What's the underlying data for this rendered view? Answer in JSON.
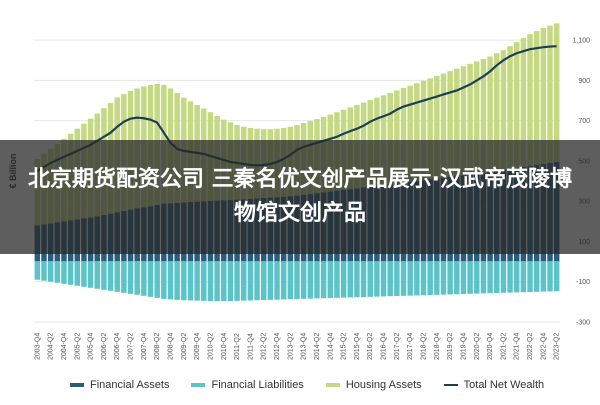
{
  "chart_data": {
    "type": "area",
    "title": "",
    "ylabel": "€ Billion",
    "ylim": [
      -300,
      1200
    ],
    "yticks": [
      1100,
      900,
      700,
      500,
      300,
      100,
      -100,
      -300
    ],
    "grid": true,
    "legend_position": "bottom",
    "quarters": [
      "2003-Q4",
      "2004-Q1",
      "2004-Q2",
      "2004-Q3",
      "2004-Q4",
      "2005-Q1",
      "2005-Q2",
      "2005-Q3",
      "2005-Q4",
      "2006-Q1",
      "2006-Q2",
      "2006-Q3",
      "2006-Q4",
      "2007-Q1",
      "2007-Q2",
      "2007-Q3",
      "2007-Q4",
      "2008-Q1",
      "2008-Q2",
      "2008-Q3",
      "2008-Q4",
      "2009-Q1",
      "2009-Q2",
      "2009-Q3",
      "2009-Q4",
      "2010-Q1",
      "2010-Q2",
      "2010-Q3",
      "2010-Q4",
      "2011-Q1",
      "2011-Q2",
      "2011-Q3",
      "2011-Q4",
      "2012-Q1",
      "2012-Q2",
      "2012-Q3",
      "2012-Q4",
      "2013-Q1",
      "2013-Q2",
      "2013-Q3",
      "2013-Q4",
      "2014-Q1",
      "2014-Q2",
      "2014-Q3",
      "2014-Q4",
      "2015-Q1",
      "2015-Q2",
      "2015-Q3",
      "2015-Q4",
      "2016-Q1",
      "2016-Q2",
      "2016-Q3",
      "2016-Q4",
      "2017-Q1",
      "2017-Q2",
      "2017-Q3",
      "2017-Q4",
      "2018-Q1",
      "2018-Q2",
      "2018-Q3",
      "2018-Q4",
      "2019-Q1",
      "2019-Q2",
      "2019-Q3",
      "2019-Q4",
      "2020-Q1",
      "2020-Q2",
      "2020-Q3",
      "2020-Q4",
      "2021-Q1",
      "2021-Q2",
      "2021-Q3",
      "2021-Q4",
      "2022-Q1",
      "2022-Q2",
      "2022-Q3",
      "2022-Q4",
      "2023-Q1",
      "2023-Q2"
    ],
    "x_tick_labels": [
      "2003-Q4",
      "2004-Q2",
      "2004-Q4",
      "2005-Q2",
      "2005-Q4",
      "2006-Q2",
      "2006-Q4",
      "2007-Q2",
      "2007-Q4",
      "2008-Q2",
      "2008-Q4",
      "2009-Q2",
      "2009-Q4",
      "2010-Q2",
      "2010-Q4",
      "2011-Q2",
      "2011-Q4",
      "2012-Q2",
      "2012-Q4",
      "2013-Q2",
      "2013-Q4",
      "2014-Q2",
      "2014-Q4",
      "2015-Q2",
      "2015-Q4",
      "2016-Q2",
      "2016-Q4",
      "2017-Q2",
      "2017-Q4",
      "2018-Q2",
      "2018-Q4",
      "2019-Q2",
      "2019-Q4",
      "2020-Q2",
      "2020-Q4",
      "2021-Q2",
      "2021-Q4",
      "2022-Q2",
      "2022-Q4",
      "2023-Q2"
    ],
    "series": [
      {
        "name": "Financial Assets",
        "kind": "bar",
        "color": "#2a5d7c",
        "values": [
          180,
          185,
          190,
          195,
          200,
          205,
          210,
          215,
          220,
          225,
          232,
          238,
          245,
          252,
          258,
          265,
          270,
          275,
          282,
          288,
          290,
          292,
          294,
          296,
          298,
          300,
          302,
          303,
          305,
          307,
          308,
          310,
          312,
          314,
          316,
          318,
          320,
          322,
          325,
          328,
          332,
          336,
          340,
          344,
          348,
          352,
          356,
          360,
          364,
          368,
          372,
          376,
          380,
          384,
          388,
          392,
          396,
          400,
          404,
          408,
          412,
          416,
          420,
          424,
          428,
          432,
          436,
          440,
          445,
          450,
          455,
          460,
          465,
          470,
          475,
          480,
          485,
          490,
          495
        ]
      },
      {
        "name": "Financial Liabilities",
        "kind": "bar",
        "color": "#5bc4c9",
        "values": [
          -90,
          -95,
          -100,
          -105,
          -110,
          -115,
          -120,
          -125,
          -130,
          -135,
          -140,
          -145,
          -150,
          -155,
          -160,
          -165,
          -170,
          -175,
          -180,
          -185,
          -188,
          -190,
          -192,
          -193,
          -194,
          -195,
          -196,
          -196,
          -196,
          -196,
          -195,
          -194,
          -193,
          -192,
          -191,
          -190,
          -189,
          -188,
          -187,
          -186,
          -185,
          -184,
          -183,
          -182,
          -181,
          -180,
          -179,
          -178,
          -177,
          -176,
          -175,
          -174,
          -173,
          -172,
          -171,
          -170,
          -169,
          -168,
          -167,
          -166,
          -165,
          -164,
          -163,
          -162,
          -161,
          -160,
          -159,
          -158,
          -157,
          -156,
          -155,
          -154,
          -153,
          -152,
          -151,
          -150,
          -149,
          -148,
          -147
        ]
      },
      {
        "name": "Housing Assets",
        "kind": "bar",
        "color": "#c5d982",
        "values": [
          330,
          350,
          370,
          390,
          410,
          430,
          450,
          470,
          490,
          510,
          530,
          550,
          570,
          580,
          590,
          595,
          600,
          602,
          600,
          590,
          570,
          545,
          520,
          500,
          480,
          460,
          440,
          420,
          400,
          385,
          370,
          360,
          352,
          346,
          342,
          340,
          340,
          342,
          345,
          350,
          356,
          362,
          368,
          375,
          382,
          390,
          398,
          406,
          414,
          422,
          430,
          438,
          446,
          454,
          462,
          470,
          478,
          486,
          494,
          502,
          510,
          518,
          526,
          534,
          542,
          550,
          558,
          566,
          574,
          585,
          595,
          610,
          625,
          640,
          655,
          665,
          675,
          682,
          688
        ]
      },
      {
        "name": "Total Net Wealth",
        "kind": "line",
        "color": "#1f3d56",
        "values": [
          450,
          470,
          490,
          505,
          520,
          535,
          550,
          565,
          580,
          600,
          620,
          640,
          670,
          695,
          710,
          715,
          712,
          705,
          690,
          640,
          590,
          560,
          550,
          545,
          540,
          535,
          525,
          515,
          505,
          495,
          490,
          485,
          480,
          478,
          480,
          485,
          495,
          510,
          530,
          555,
          570,
          580,
          590,
          600,
          610,
          620,
          635,
          648,
          660,
          675,
          695,
          710,
          722,
          735,
          755,
          770,
          780,
          790,
          800,
          810,
          820,
          830,
          840,
          850,
          865,
          880,
          900,
          920,
          945,
          975,
          1000,
          1020,
          1035,
          1045,
          1055,
          1060,
          1065,
          1068,
          1070
        ]
      }
    ]
  },
  "banner": {
    "text": "北京期货配资公司 三秦名优文创产品展示·汉武帝茂陵博物馆文创产品"
  }
}
